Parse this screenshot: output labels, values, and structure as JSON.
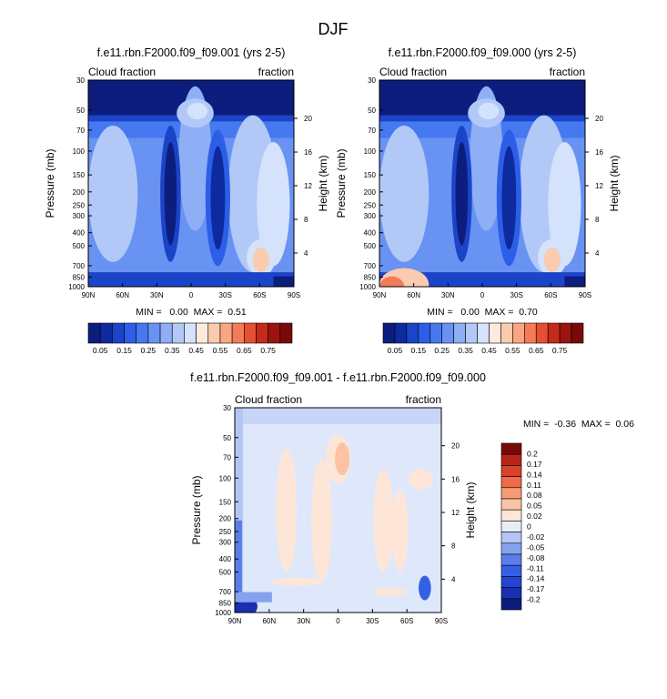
{
  "page_title": "DJF",
  "colors": {
    "cb_abs": [
      "#0c1d7d",
      "#0d2a9e",
      "#1b44c9",
      "#2d5ee8",
      "#4678f0",
      "#6993f2",
      "#8eaef5",
      "#b2c9f8",
      "#d5e2fb",
      "#fcebdc",
      "#fbcbb0",
      "#f9a781",
      "#f47b57",
      "#e54f33",
      "#c52a1b",
      "#9b1410",
      "#7a0a0a"
    ],
    "cb_diff": [
      "#0c1d7d",
      "#1a2fb0",
      "#2444d4",
      "#3560e6",
      "#5a7ee9",
      "#85a2ef",
      "#b3c6f4",
      "#e7eefb",
      "#fde6d7",
      "#fbc2a3",
      "#f79b76",
      "#f06a47",
      "#d9422a",
      "#b9251a",
      "#7a0a0a"
    ]
  },
  "chart_data": [
    {
      "type": "heatmap",
      "title": "f.e11.rbn.F2000.f09_f09.001 (yrs 2-5)",
      "left_label": "Cloud fraction",
      "right_label": "fraction",
      "xlabel": "",
      "ylabel": "Pressure (mb)",
      "ylabel_right": "Height (km)",
      "x_ticks": [
        "90N",
        "60N",
        "30N",
        "0",
        "30S",
        "60S",
        "90S"
      ],
      "y_ticks": [
        "1000",
        "850",
        "700",
        "500",
        "400",
        "300",
        "250",
        "200",
        "150",
        "100",
        "70",
        "50",
        "30"
      ],
      "y_ticks_right": [
        "4",
        "8",
        "12",
        "16",
        "20"
      ],
      "stats": "MIN =   0.00  MAX =  0.51",
      "colorbar_labels": [
        "0.05",
        "0.15",
        "0.25",
        "0.35",
        "0.45",
        "0.55",
        "0.65",
        "0.75"
      ]
    },
    {
      "type": "heatmap",
      "title": "f.e11.rbn.F2000.f09_f09.000 (yrs 2-5)",
      "left_label": "Cloud fraction",
      "right_label": "fraction",
      "xlabel": "",
      "ylabel": "Pressure (mb)",
      "ylabel_right": "Height (km)",
      "x_ticks": [
        "90N",
        "60N",
        "30N",
        "0",
        "30S",
        "60S",
        "90S"
      ],
      "y_ticks": [
        "1000",
        "850",
        "700",
        "500",
        "400",
        "300",
        "250",
        "200",
        "150",
        "100",
        "70",
        "50",
        "30"
      ],
      "y_ticks_right": [
        "4",
        "8",
        "12",
        "16",
        "20"
      ],
      "stats": "MIN =   0.00  MAX =  0.70",
      "colorbar_labels": [
        "0.05",
        "0.15",
        "0.25",
        "0.35",
        "0.45",
        "0.55",
        "0.65",
        "0.75"
      ]
    },
    {
      "type": "heatmap",
      "title": "f.e11.rbn.F2000.f09_f09.001 - f.e11.rbn.F2000.f09_f09.000",
      "left_label": "Cloud fraction",
      "right_label": "fraction",
      "xlabel": "",
      "ylabel": "Pressure (mb)",
      "ylabel_right": "Height (km)",
      "x_ticks": [
        "90N",
        "60N",
        "30N",
        "0",
        "30S",
        "60S",
        "90S"
      ],
      "y_ticks": [
        "1000",
        "850",
        "700",
        "500",
        "400",
        "300",
        "250",
        "200",
        "150",
        "100",
        "70",
        "50",
        "30"
      ],
      "y_ticks_right": [
        "4",
        "8",
        "12",
        "16",
        "20"
      ],
      "stats": "MIN =  -0.36  MAX =  0.06",
      "colorbar_labels": [
        "0.2",
        "0.17",
        "0.14",
        "0.11",
        "0.08",
        "0.05",
        "0.02",
        "0",
        "-0.02",
        "-0.05",
        "-0.08",
        "-0.11",
        "-0.14",
        "-0.17",
        "-0.2"
      ]
    }
  ]
}
